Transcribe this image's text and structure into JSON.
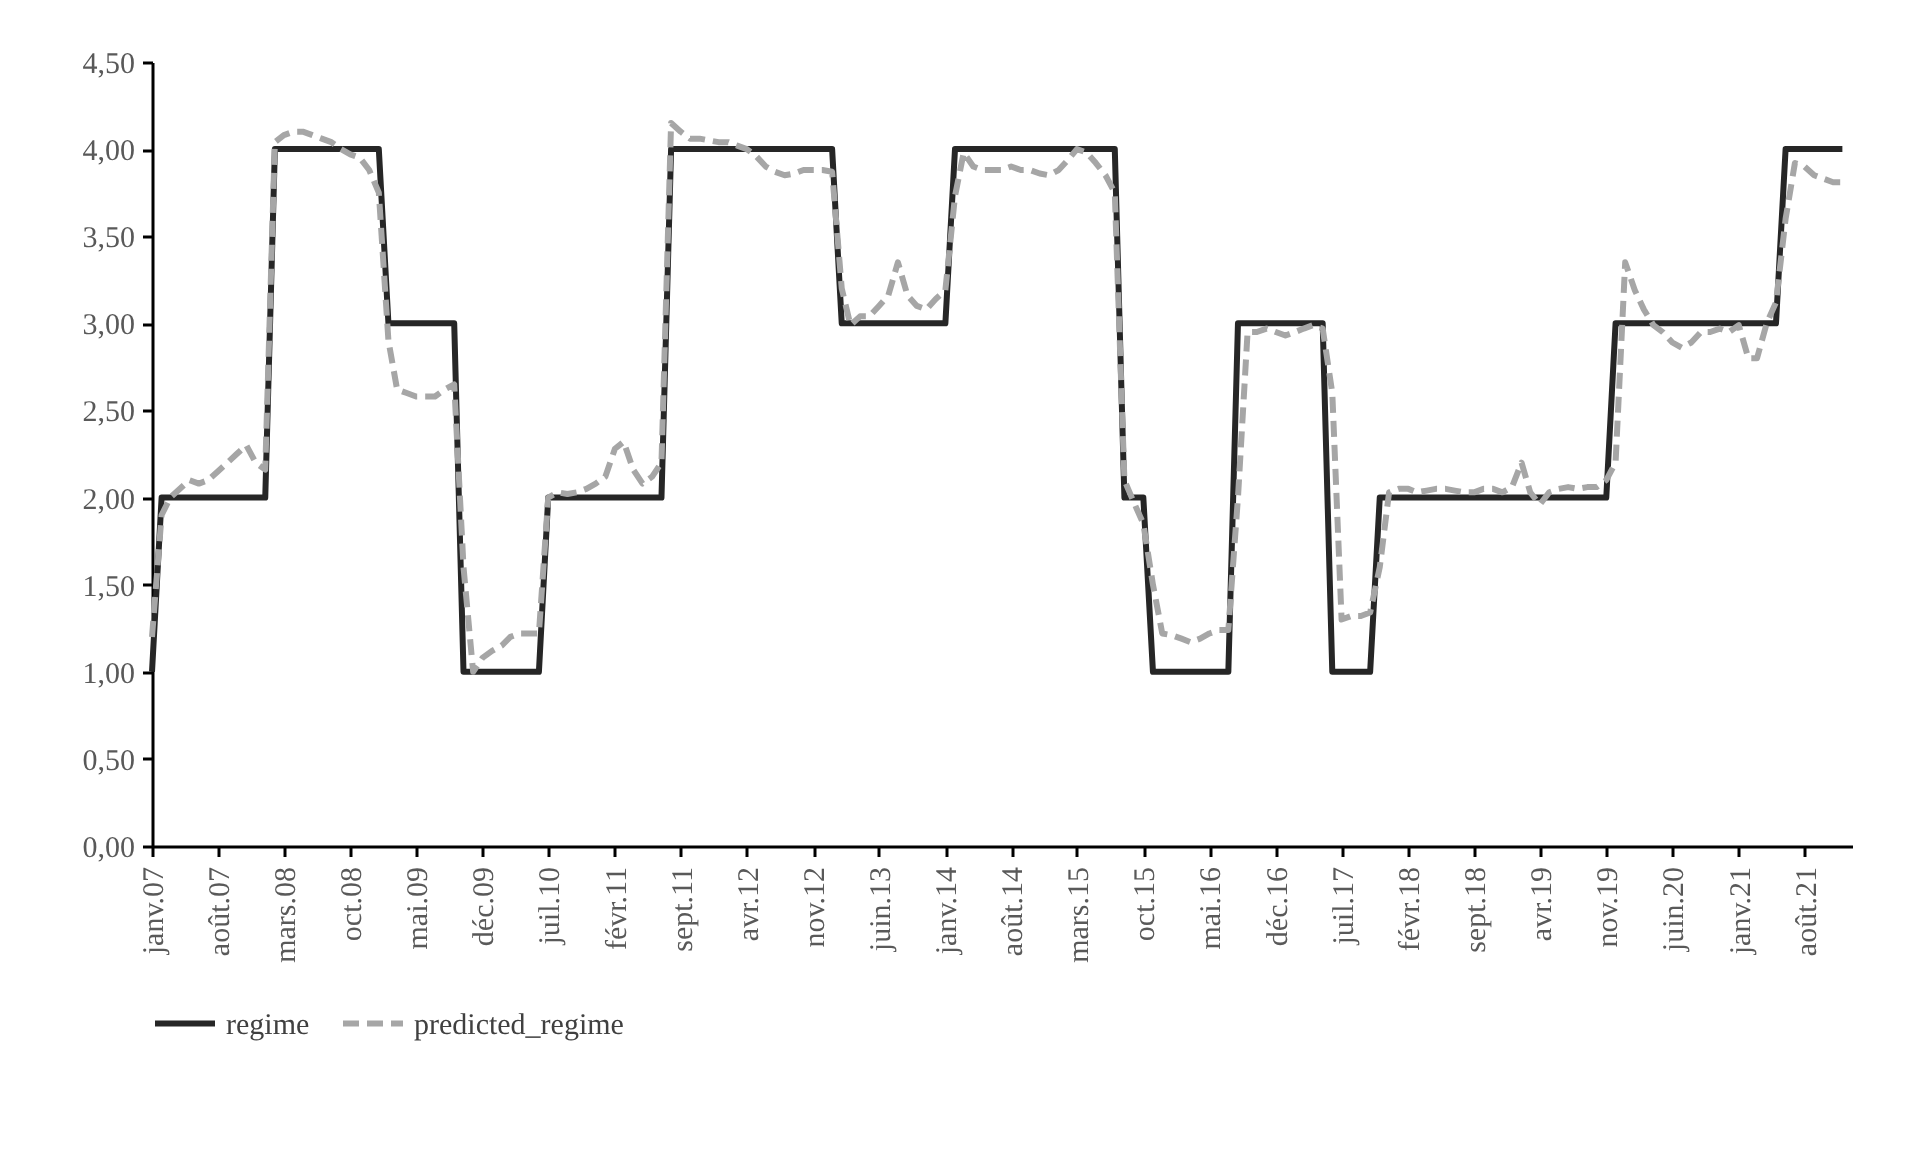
{
  "chart_data": {
    "type": "line",
    "x": [
      "2007-01",
      "2007-02",
      "2007-03",
      "2007-04",
      "2007-05",
      "2007-06",
      "2007-07",
      "2007-08",
      "2007-09",
      "2007-10",
      "2007-11",
      "2007-12",
      "2008-01",
      "2008-02",
      "2008-03",
      "2008-04",
      "2008-05",
      "2008-06",
      "2008-07",
      "2008-08",
      "2008-09",
      "2008-10",
      "2008-11",
      "2008-12",
      "2009-01",
      "2009-02",
      "2009-03",
      "2009-04",
      "2009-05",
      "2009-06",
      "2009-07",
      "2009-08",
      "2009-09",
      "2009-10",
      "2009-11",
      "2009-12",
      "2010-01",
      "2010-02",
      "2010-03",
      "2010-04",
      "2010-05",
      "2010-06",
      "2010-07",
      "2010-08",
      "2010-09",
      "2010-10",
      "2010-11",
      "2010-12",
      "2011-01",
      "2011-02",
      "2011-03",
      "2011-04",
      "2011-05",
      "2011-06",
      "2011-07",
      "2011-08",
      "2011-09",
      "2011-10",
      "2011-11",
      "2011-12",
      "2012-01",
      "2012-02",
      "2012-03",
      "2012-04",
      "2012-05",
      "2012-06",
      "2012-07",
      "2012-08",
      "2012-09",
      "2012-10",
      "2012-11",
      "2012-12",
      "2013-01",
      "2013-02",
      "2013-03",
      "2013-04",
      "2013-05",
      "2013-06",
      "2013-07",
      "2013-08",
      "2013-09",
      "2013-10",
      "2013-11",
      "2013-12",
      "2014-01",
      "2014-02",
      "2014-03",
      "2014-04",
      "2014-05",
      "2014-06",
      "2014-07",
      "2014-08",
      "2014-09",
      "2014-10",
      "2014-11",
      "2014-12",
      "2015-01",
      "2015-02",
      "2015-03",
      "2015-04",
      "2015-05",
      "2015-06",
      "2015-07",
      "2015-08",
      "2015-09",
      "2015-10",
      "2015-11",
      "2015-12",
      "2016-01",
      "2016-02",
      "2016-03",
      "2016-04",
      "2016-05",
      "2016-06",
      "2016-07",
      "2016-08",
      "2016-09",
      "2016-10",
      "2016-11",
      "2016-12",
      "2017-01",
      "2017-02",
      "2017-03",
      "2017-04",
      "2017-05",
      "2017-06",
      "2017-07",
      "2017-08",
      "2017-09",
      "2017-10",
      "2017-11",
      "2017-12",
      "2018-01",
      "2018-02",
      "2018-03",
      "2018-04",
      "2018-05",
      "2018-06",
      "2018-07",
      "2018-08",
      "2018-09",
      "2018-10",
      "2018-11",
      "2018-12",
      "2019-01",
      "2019-02",
      "2019-03",
      "2019-04",
      "2019-05",
      "2019-06",
      "2019-07",
      "2019-08",
      "2019-09",
      "2019-10",
      "2019-11",
      "2019-12",
      "2020-01",
      "2020-02",
      "2020-03",
      "2020-04",
      "2020-05",
      "2020-06",
      "2020-07",
      "2020-08",
      "2020-09",
      "2020-10",
      "2020-11",
      "2020-12",
      "2021-01",
      "2021-02",
      "2021-03",
      "2021-04",
      "2021-05",
      "2021-06",
      "2021-07",
      "2021-08",
      "2021-09",
      "2021-10",
      "2021-11",
      "2021-12"
    ],
    "series": [
      {
        "name": "regime",
        "color": "#262626",
        "line_style": "solid",
        "x": [
          "2007-01",
          "2007-02",
          "2008-01",
          "2008-02",
          "2009-01",
          "2009-02",
          "2009-09",
          "2009-10",
          "2010-06",
          "2010-07",
          "2011-07",
          "2011-08",
          "2013-01",
          "2013-02",
          "2014-01",
          "2014-02",
          "2015-07",
          "2015-08",
          "2015-10",
          "2015-11",
          "2016-07",
          "2016-08",
          "2017-05",
          "2017-06",
          "2017-10",
          "2017-11",
          "2019-11",
          "2019-12",
          "2021-05",
          "2021-06",
          "2021-12"
        ],
        "values": [
          1,
          2,
          2,
          4,
          4,
          3,
          3,
          1,
          1,
          2,
          2,
          4,
          4,
          3,
          3,
          4,
          4,
          2,
          2,
          1,
          1,
          3,
          3,
          1,
          1,
          2,
          2,
          3,
          3,
          4,
          4
        ]
      },
      {
        "name": "predicted_regime",
        "color": "#a6a6a6",
        "line_style": "dashed",
        "values": [
          1.2,
          1.9,
          2.0,
          2.05,
          2.1,
          2.08,
          2.1,
          2.15,
          2.2,
          2.25,
          2.3,
          2.2,
          2.16,
          4.04,
          4.08,
          4.1,
          4.1,
          4.08,
          4.06,
          4.04,
          4.0,
          3.97,
          3.95,
          3.88,
          3.75,
          2.9,
          2.62,
          2.6,
          2.58,
          2.58,
          2.58,
          2.62,
          2.65,
          1.6,
          1.0,
          1.08,
          1.12,
          1.15,
          1.2,
          1.22,
          1.22,
          1.22,
          2.0,
          2.03,
          2.02,
          2.03,
          2.05,
          2.08,
          2.12,
          2.28,
          2.32,
          2.16,
          2.08,
          2.12,
          2.2,
          4.15,
          4.1,
          4.06,
          4.06,
          4.05,
          4.04,
          4.04,
          4.02,
          4.0,
          3.96,
          3.9,
          3.87,
          3.85,
          3.86,
          3.88,
          3.88,
          3.88,
          3.87,
          3.2,
          2.99,
          3.04,
          3.04,
          3.1,
          3.16,
          3.35,
          3.16,
          3.1,
          3.08,
          3.14,
          3.19,
          3.73,
          3.98,
          3.9,
          3.88,
          3.88,
          3.88,
          3.9,
          3.88,
          3.88,
          3.86,
          3.85,
          3.88,
          3.94,
          4.0,
          3.98,
          3.92,
          3.85,
          3.75,
          2.1,
          1.97,
          1.85,
          1.5,
          1.22,
          1.21,
          1.19,
          1.17,
          1.19,
          1.22,
          1.24,
          1.24,
          2.0,
          2.95,
          2.95,
          2.97,
          2.95,
          2.93,
          2.95,
          2.97,
          2.99,
          2.97,
          2.6,
          1.3,
          1.32,
          1.32,
          1.34,
          1.6,
          2.03,
          2.05,
          2.05,
          2.03,
          2.04,
          2.05,
          2.05,
          2.04,
          2.03,
          2.03,
          2.05,
          2.05,
          2.03,
          2.06,
          2.2,
          2.03,
          1.96,
          2.03,
          2.05,
          2.06,
          2.05,
          2.06,
          2.06,
          2.1,
          2.2,
          3.35,
          3.19,
          3.08,
          2.99,
          2.95,
          2.89,
          2.86,
          2.89,
          2.95,
          2.95,
          2.97,
          2.95,
          2.99,
          2.8,
          2.8,
          3.0,
          3.12,
          3.6,
          3.92,
          3.9,
          3.85,
          3.83,
          3.81,
          3.81
        ]
      }
    ],
    "xlim": [
      "2007-01",
      "2022-01"
    ],
    "xticks": [
      {
        "value": "2007-01",
        "label": "janv.07"
      },
      {
        "value": "2007-08",
        "label": "août.07"
      },
      {
        "value": "2008-03",
        "label": "mars.08"
      },
      {
        "value": "2008-10",
        "label": "oct.08"
      },
      {
        "value": "2009-05",
        "label": "mai.09"
      },
      {
        "value": "2009-12",
        "label": "déc.09"
      },
      {
        "value": "2010-07",
        "label": "juil.10"
      },
      {
        "value": "2011-02",
        "label": "févr.11"
      },
      {
        "value": "2011-09",
        "label": "sept.11"
      },
      {
        "value": "2012-04",
        "label": "avr.12"
      },
      {
        "value": "2012-11",
        "label": "nov.12"
      },
      {
        "value": "2013-06",
        "label": "juin.13"
      },
      {
        "value": "2014-01",
        "label": "janv.14"
      },
      {
        "value": "2014-08",
        "label": "août.14"
      },
      {
        "value": "2015-03",
        "label": "mars.15"
      },
      {
        "value": "2015-10",
        "label": "oct.15"
      },
      {
        "value": "2016-05",
        "label": "mai.16"
      },
      {
        "value": "2016-12",
        "label": "déc.16"
      },
      {
        "value": "2017-07",
        "label": "juil.17"
      },
      {
        "value": "2018-02",
        "label": "févr.18"
      },
      {
        "value": "2018-09",
        "label": "sept.18"
      },
      {
        "value": "2019-04",
        "label": "avr.19"
      },
      {
        "value": "2019-11",
        "label": "nov.19"
      },
      {
        "value": "2020-06",
        "label": "juin.20"
      },
      {
        "value": "2021-01",
        "label": "janv.21"
      },
      {
        "value": "2021-08",
        "label": "août.21"
      }
    ],
    "ylim": [
      0,
      4.5
    ],
    "yticks": [
      {
        "value": 0,
        "label": "0,00"
      },
      {
        "value": 0.5,
        "label": "0,50"
      },
      {
        "value": 1,
        "label": "1,00"
      },
      {
        "value": 1.5,
        "label": "1,50"
      },
      {
        "value": 2,
        "label": "2,00"
      },
      {
        "value": 2.5,
        "label": "2,50"
      },
      {
        "value": 3,
        "label": "3,00"
      },
      {
        "value": 3.5,
        "label": "3,50"
      },
      {
        "value": 4,
        "label": "4,00"
      },
      {
        "value": 4.5,
        "label": "4,50"
      }
    ],
    "grid": false,
    "legend": "bottom",
    "marker": "none"
  }
}
